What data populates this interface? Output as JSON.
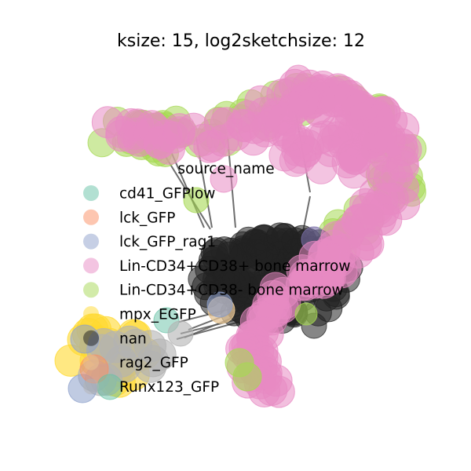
{
  "title": "ksize: 15, log2sketchsize: 12",
  "legend": {
    "title": "source_name",
    "items": [
      {
        "label": "cd41_GFPlow",
        "color": "#66c2a5"
      },
      {
        "label": "lck_GFP",
        "color": "#fc8d62"
      },
      {
        "label": "lck_GFP_rag1",
        "color": "#8da0cb"
      },
      {
        "label": "Lin-CD34+CD38+ bone marrow",
        "color": "#e78ac3"
      },
      {
        "label": "Lin-CD34+CD38- bone marrow",
        "color": "#a6d854"
      },
      {
        "label": "mpx_EGFP",
        "color": "#ffd92f"
      },
      {
        "label": "nan",
        "color": "#1a1a1a"
      },
      {
        "label": "rag2_GFP",
        "color": "#e5c494"
      },
      {
        "label": "Runx123_GFP",
        "color": "#b3b3b3"
      }
    ]
  },
  "palette": {
    "pink": "#e78ac3",
    "green": "#a6d854",
    "dark": "#222222",
    "edge": "#555555",
    "yellow": "#ffd92f",
    "blue": "#8da0cb",
    "salmon": "#fc8d62",
    "teal": "#66c2a5",
    "beige": "#e5c494",
    "grey": "#b3b3b3"
  }
}
